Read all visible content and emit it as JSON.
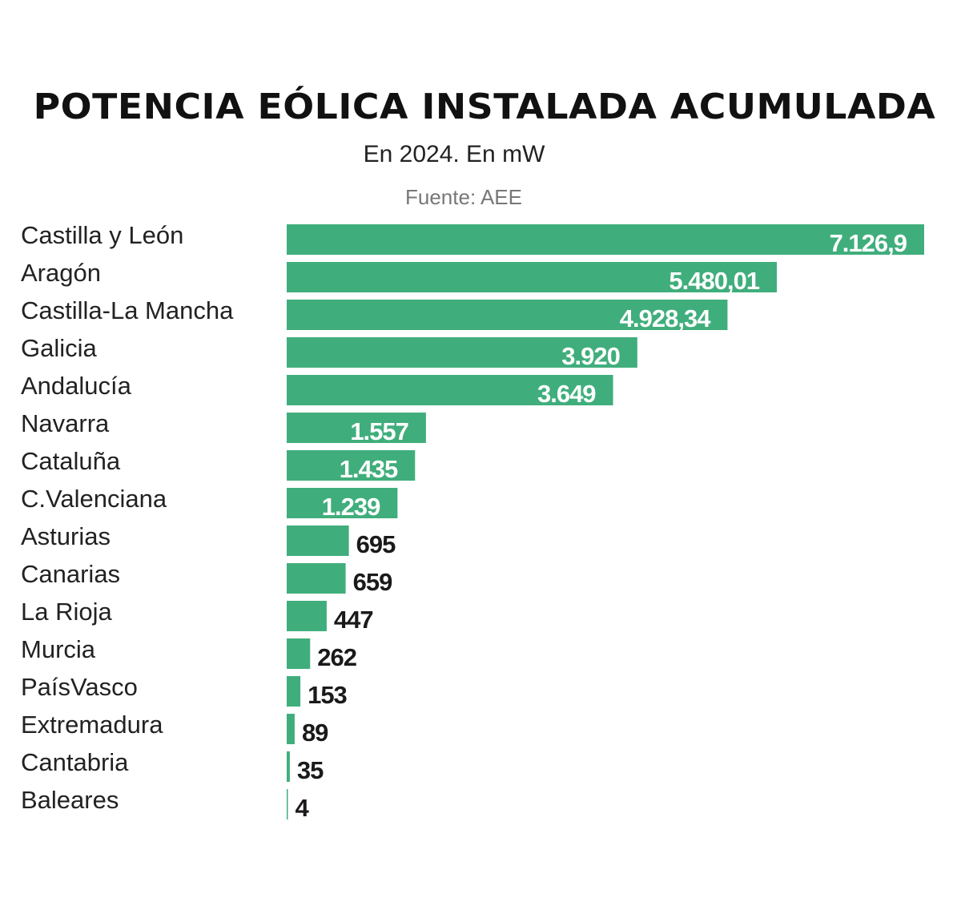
{
  "chart_data": {
    "type": "bar",
    "orientation": "horizontal",
    "title": "POTENCIA EÓLICA INSTALADA ACUMULADA",
    "subtitle": "En 2024. En mW",
    "source": "Fuente: AEE",
    "categories": [
      "Castilla y León",
      "Aragón",
      "Castilla-La Mancha",
      "Galicia",
      "Andalucía",
      "Navarra",
      "Cataluña",
      "C.Valenciana",
      "Asturias",
      "Canarias",
      "La Rioja",
      "Murcia",
      "PaísVasco",
      "Extremadura",
      "Cantabria",
      "Baleares"
    ],
    "values": [
      7126.9,
      5480.01,
      4928.34,
      3920,
      3649,
      1557,
      1435,
      1239,
      695,
      659,
      447,
      262,
      153,
      89,
      35,
      4
    ],
    "value_labels": [
      "7.126,9",
      "5.480,01",
      "4.928,34",
      "3.920",
      "3.649",
      "1.557",
      "1.435",
      "1.239",
      "695",
      "659",
      "447",
      "262",
      "153",
      "89",
      "35",
      "4"
    ],
    "xlim": [
      0,
      7126.9
    ],
    "grid": false,
    "bar_color": "#40ae7c"
  }
}
